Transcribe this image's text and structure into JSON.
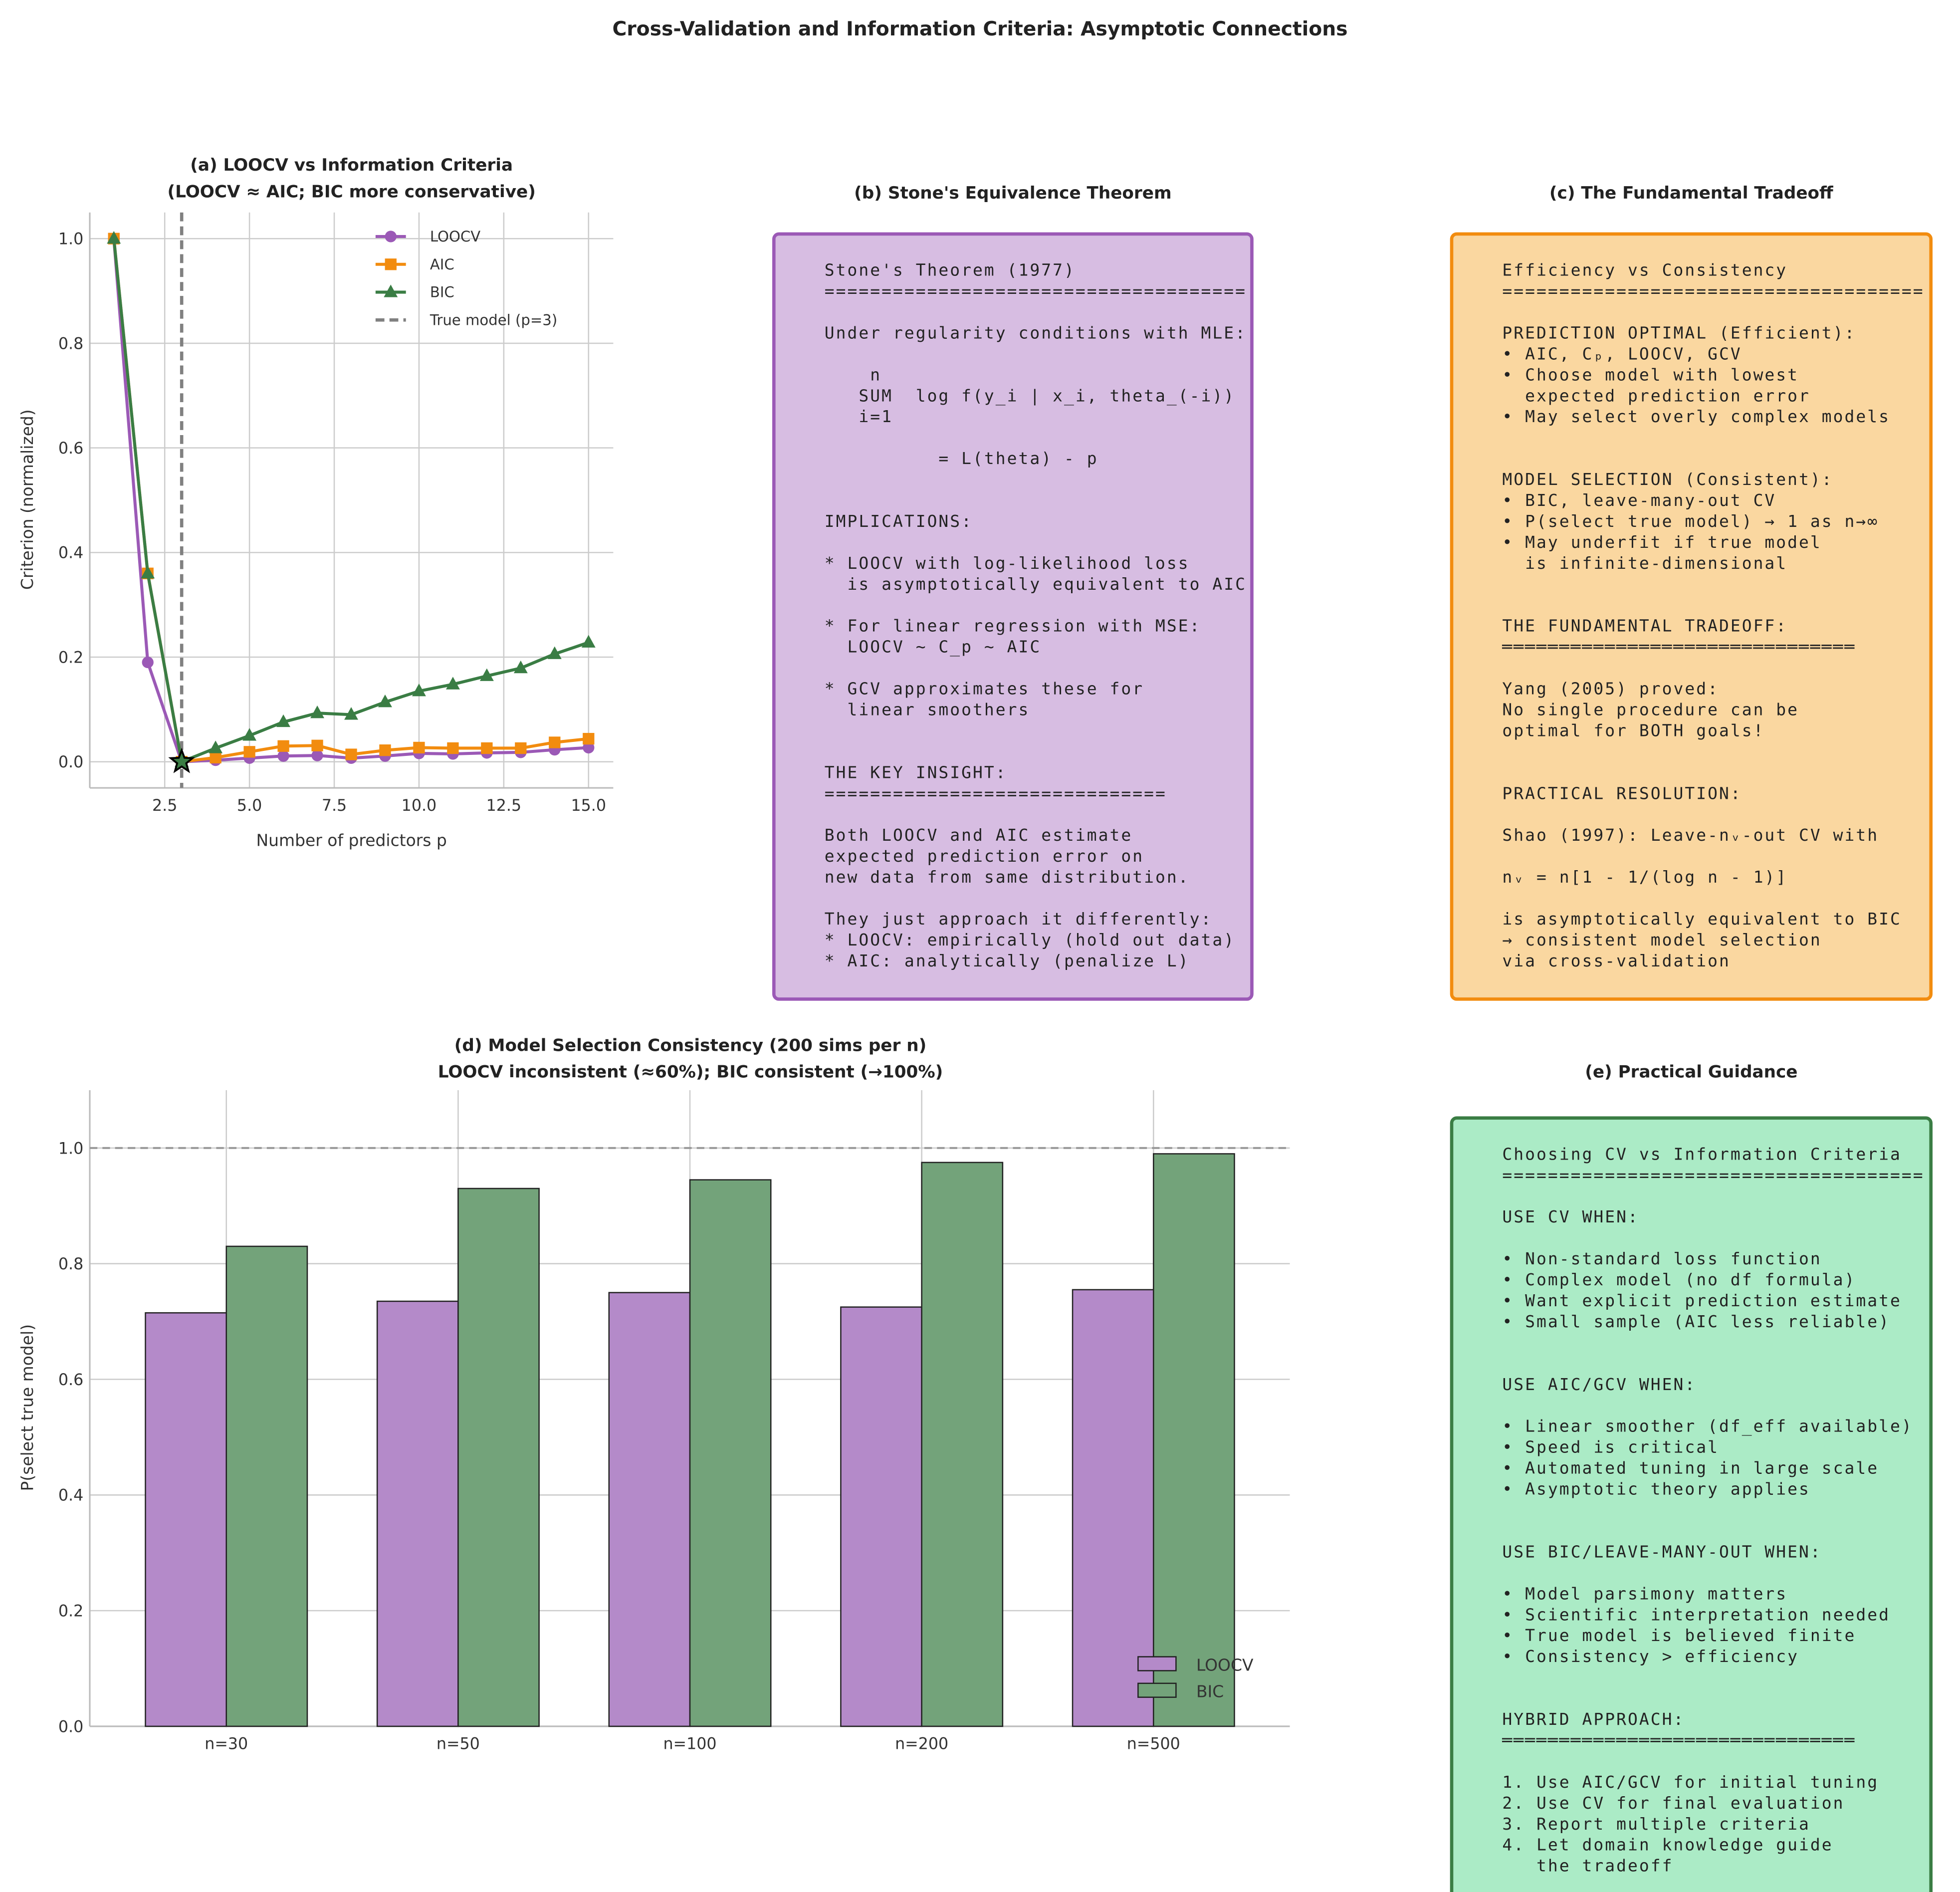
{
  "figure": {
    "title": "Cross-Validation and Information Criteria: Asymptotic Connections"
  },
  "colors": {
    "loocv": "#9b59b6",
    "aic": "#f28c0f",
    "bic": "#3a7d44",
    "truth": "#808080"
  },
  "chart_data": [
    {
      "type": "line",
      "title": [
        "(a) LOOCV vs Information Criteria",
        "(LOOCV ≈ AIC; BIC more conservative)"
      ],
      "xlabel": "Number of predictors p",
      "ylabel": "Criterion (normalized)",
      "xlim": [
        0.29,
        15.73
      ],
      "ylim": [
        -0.05,
        1.05
      ],
      "xticks": [
        "2.5",
        "5.0",
        "7.5",
        "10.0",
        "12.5",
        "15.0"
      ],
      "yticks": [
        "0.0",
        "0.2",
        "0.4",
        "0.6",
        "0.8",
        "1.0"
      ],
      "grid": true,
      "legend_position": "top-right",
      "x": [
        1,
        2,
        3,
        4,
        5,
        6,
        7,
        8,
        9,
        10,
        11,
        12,
        13,
        14,
        15
      ],
      "series": [
        {
          "name": "LOOCV",
          "marker": "circle",
          "values": [
            1.0,
            0.19,
            0.0,
            0.003,
            0.007,
            0.011,
            0.012,
            0.007,
            0.011,
            0.016,
            0.015,
            0.017,
            0.018,
            0.023,
            0.027
          ]
        },
        {
          "name": "AIC",
          "marker": "square",
          "values": [
            1.0,
            0.36,
            0.0,
            0.008,
            0.019,
            0.03,
            0.031,
            0.014,
            0.022,
            0.027,
            0.026,
            0.026,
            0.026,
            0.037,
            0.044
          ]
        },
        {
          "name": "BIC",
          "marker": "triangle",
          "values": [
            1.0,
            0.36,
            0.0,
            0.026,
            0.05,
            0.076,
            0.093,
            0.09,
            0.114,
            0.135,
            0.148,
            0.164,
            0.179,
            0.206,
            0.228
          ]
        }
      ],
      "vline": {
        "x": 3,
        "label": "True model (p=3)"
      },
      "highlight": {
        "x": 3,
        "y": 0.0,
        "marker": "star"
      }
    },
    {
      "type": "bar",
      "title": [
        "(d) Model Selection Consistency (200 sims per n)",
        "LOOCV inconsistent (≈60%); BIC consistent (→100%)"
      ],
      "xlabel": "",
      "ylabel": "P(select true model)",
      "ylim": [
        0,
        1.1
      ],
      "yticks": [
        "0.0",
        "0.2",
        "0.4",
        "0.6",
        "0.8",
        "1.0"
      ],
      "grid": true,
      "legend_position": "lower-right",
      "categories": [
        "n=30",
        "n=50",
        "n=100",
        "n=200",
        "n=500"
      ],
      "series": [
        {
          "name": "LOOCV",
          "values": [
            0.715,
            0.735,
            0.75,
            0.725,
            0.755
          ]
        },
        {
          "name": "BIC",
          "values": [
            0.83,
            0.93,
            0.945,
            0.975,
            0.99
          ]
        }
      ],
      "hline": {
        "y": 1.0
      }
    }
  ],
  "panels": {
    "b": {
      "title": "(b) Stone's Equivalence Theorem",
      "fill": "#d7bde2",
      "border": "#9b59b6",
      "lines": [
        "Stone's Theorem (1977)",
        "=====================================",
        "",
        "Under regularity conditions with MLE:",
        "",
        "    n",
        "   SUM  log f(y_i | x_i, theta_(-i))",
        "   i=1",
        "",
        "          = L(theta) - p",
        "",
        "",
        "IMPLICATIONS:",
        "",
        "* LOOCV with log-likelihood loss",
        "  is asymptotically equivalent to AIC",
        "",
        "* For linear regression with MSE:",
        "  LOOCV ~ C_p ~ AIC",
        "",
        "* GCV approximates these for",
        "  linear smoothers",
        "",
        "",
        "THE KEY INSIGHT:",
        "==============================",
        "",
        "Both LOOCV and AIC estimate",
        "expected prediction error on",
        "new data from same distribution.",
        "",
        "They just approach it differently:",
        "* LOOCV: empirically (hold out data)",
        "* AIC: analytically (penalize L)"
      ]
    },
    "c": {
      "title": "(c) The Fundamental Tradeoff",
      "fill": "#fad7a0",
      "border": "#f28c0f",
      "lines": [
        "Efficiency vs Consistency",
        "=====================================",
        "",
        "PREDICTION OPTIMAL (Efficient):",
        "• AIC, Cₚ, LOOCV, GCV",
        "• Choose model with lowest",
        "  expected prediction error",
        "• May select overly complex models",
        "",
        "",
        "MODEL SELECTION (Consistent):",
        "• BIC, leave-many-out CV",
        "• P(select true model) → 1 as n→∞",
        "• May underfit if true model",
        "  is infinite-dimensional",
        "",
        "",
        "THE FUNDAMENTAL TRADEOFF:",
        "═══════════════════════════════",
        "",
        "Yang (2005) proved:",
        "No single procedure can be",
        "optimal for BOTH goals!",
        "",
        "",
        "PRACTICAL RESOLUTION:",
        "",
        "Shao (1997): Leave-nᵥ-out CV with",
        "",
        "nᵥ = n[1 - 1/(log n - 1)]",
        "",
        "is asymptotically equivalent to BIC",
        "→ consistent model selection",
        "via cross-validation"
      ]
    },
    "e": {
      "title": "(e) Practical Guidance",
      "fill": "#abebc6",
      "border": "#3a7d44",
      "lines": [
        "Choosing CV vs Information Criteria",
        "=====================================",
        "",
        "USE CV WHEN:",
        "",
        "• Non-standard loss function",
        "• Complex model (no df formula)",
        "• Want explicit prediction estimate",
        "• Small sample (AIC less reliable)",
        "",
        "",
        "USE AIC/GCV WHEN:",
        "",
        "• Linear smoother (df_eff available)",
        "• Speed is critical",
        "• Automated tuning in large scale",
        "• Asymptotic theory applies",
        "",
        "",
        "USE BIC/LEAVE-MANY-OUT WHEN:",
        "",
        "• Model parsimony matters",
        "• Scientific interpretation needed",
        "• True model is believed finite",
        "• Consistency > efficiency",
        "",
        "",
        "HYBRID APPROACH:",
        "═══════════════════════════════",
        "",
        "1. Use AIC/GCV for initial tuning",
        "2. Use CV for final evaluation",
        "3. Report multiple criteria",
        "4. Let domain knowledge guide",
        "   the tradeoff"
      ]
    }
  }
}
